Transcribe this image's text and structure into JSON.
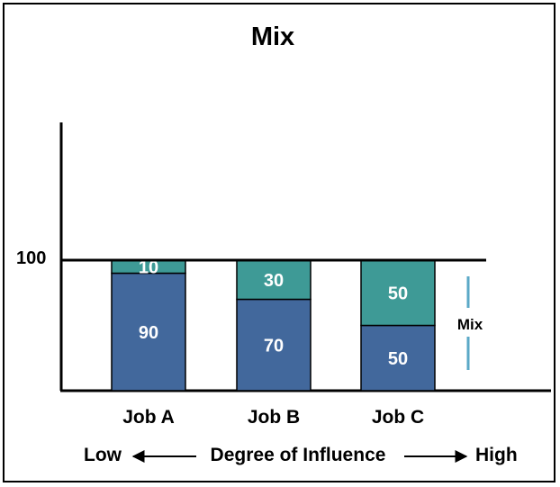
{
  "chart_data": {
    "type": "bar",
    "stacked": true,
    "title": "Mix",
    "categories": [
      "Job A",
      "Job B",
      "Job C"
    ],
    "series": [
      {
        "values": [
          90,
          70,
          50
        ],
        "color": "#42689c"
      },
      {
        "values": [
          10,
          30,
          50
        ],
        "color": "#3e9a96"
      }
    ],
    "y_reference_label": "100",
    "y_reference_value": 100,
    "ylim": [
      0,
      200
    ],
    "bracket_label": "Mix",
    "bracket_color": "#5ba9c7",
    "footer": {
      "low_label": "Low",
      "axis_label": "Degree of Influence",
      "high_label": "High"
    },
    "grid": false,
    "legend": "none"
  }
}
